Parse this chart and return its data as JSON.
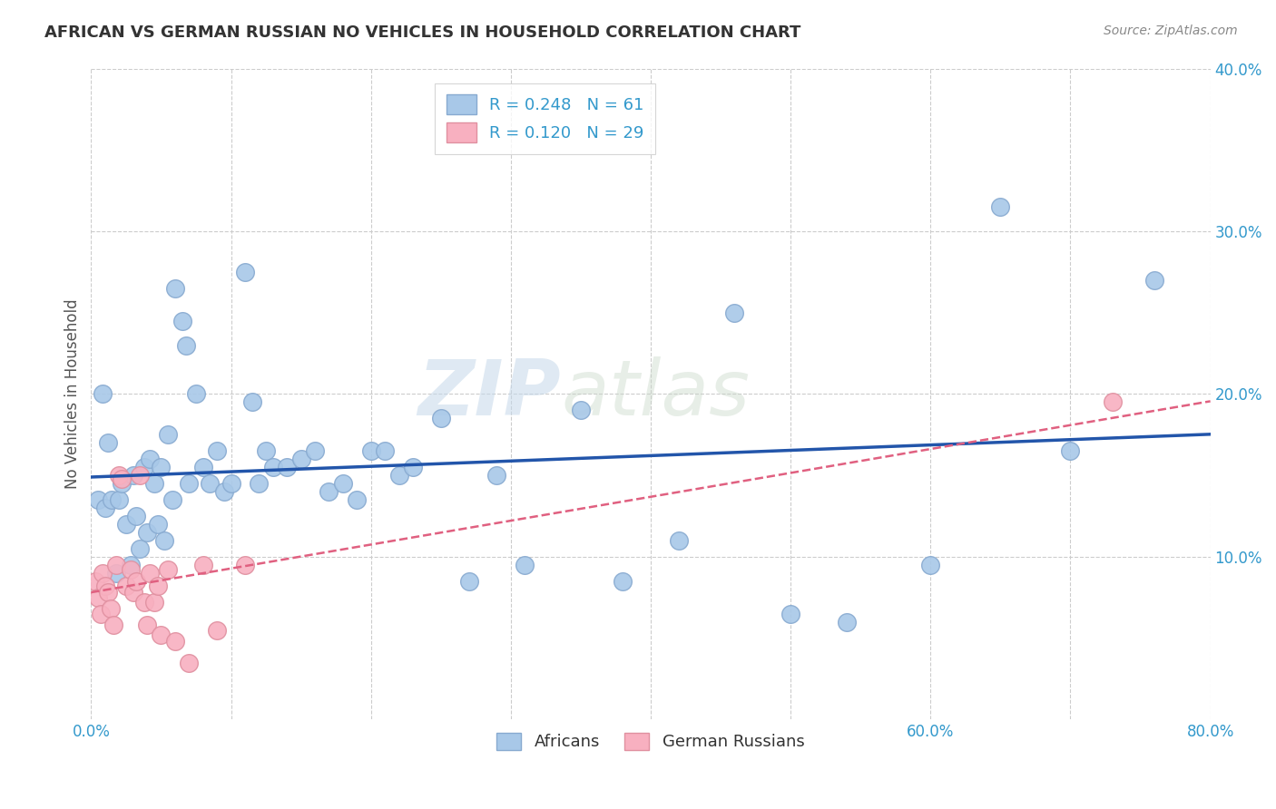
{
  "title": "AFRICAN VS GERMAN RUSSIAN NO VEHICLES IN HOUSEHOLD CORRELATION CHART",
  "source": "Source: ZipAtlas.com",
  "ylabel": "No Vehicles in Household",
  "xlim": [
    0.0,
    0.8
  ],
  "ylim": [
    0.0,
    0.4
  ],
  "xticks": [
    0.0,
    0.1,
    0.2,
    0.3,
    0.4,
    0.5,
    0.6,
    0.7,
    0.8
  ],
  "xticklabels": [
    "0.0%",
    "",
    "",
    "",
    "",
    "",
    "60.0%",
    "",
    "80.0%"
  ],
  "yticks": [
    0.0,
    0.1,
    0.2,
    0.3,
    0.4
  ],
  "yticklabels": [
    "",
    "10.0%",
    "20.0%",
    "30.0%",
    "40.0%"
  ],
  "african_R": 0.248,
  "african_N": 61,
  "german_russian_R": 0.12,
  "german_russian_N": 29,
  "african_color": "#a8c8e8",
  "african_edge_color": "#88aad0",
  "african_line_color": "#2255aa",
  "german_russian_color": "#f8b0c0",
  "german_russian_edge_color": "#e090a0",
  "german_russian_line_color": "#e06080",
  "watermark_zip": "ZIP",
  "watermark_atlas": "atlas",
  "african_x": [
    0.005,
    0.008,
    0.01,
    0.012,
    0.015,
    0.018,
    0.02,
    0.022,
    0.025,
    0.028,
    0.03,
    0.032,
    0.035,
    0.038,
    0.04,
    0.042,
    0.045,
    0.048,
    0.05,
    0.052,
    0.055,
    0.058,
    0.06,
    0.065,
    0.068,
    0.07,
    0.075,
    0.08,
    0.085,
    0.09,
    0.095,
    0.1,
    0.11,
    0.115,
    0.12,
    0.125,
    0.13,
    0.14,
    0.15,
    0.16,
    0.17,
    0.18,
    0.19,
    0.2,
    0.21,
    0.22,
    0.23,
    0.25,
    0.27,
    0.29,
    0.31,
    0.35,
    0.38,
    0.42,
    0.46,
    0.5,
    0.54,
    0.6,
    0.65,
    0.7,
    0.76
  ],
  "african_y": [
    0.135,
    0.2,
    0.13,
    0.17,
    0.135,
    0.09,
    0.135,
    0.145,
    0.12,
    0.095,
    0.15,
    0.125,
    0.105,
    0.155,
    0.115,
    0.16,
    0.145,
    0.12,
    0.155,
    0.11,
    0.175,
    0.135,
    0.265,
    0.245,
    0.23,
    0.145,
    0.2,
    0.155,
    0.145,
    0.165,
    0.14,
    0.145,
    0.275,
    0.195,
    0.145,
    0.165,
    0.155,
    0.155,
    0.16,
    0.165,
    0.14,
    0.145,
    0.135,
    0.165,
    0.165,
    0.15,
    0.155,
    0.185,
    0.085,
    0.15,
    0.095,
    0.19,
    0.085,
    0.11,
    0.25,
    0.065,
    0.06,
    0.095,
    0.315,
    0.165,
    0.27
  ],
  "german_russian_x": [
    0.003,
    0.005,
    0.007,
    0.008,
    0.01,
    0.012,
    0.014,
    0.016,
    0.018,
    0.02,
    0.022,
    0.025,
    0.028,
    0.03,
    0.032,
    0.035,
    0.038,
    0.04,
    0.042,
    0.045,
    0.048,
    0.05,
    0.055,
    0.06,
    0.07,
    0.08,
    0.09,
    0.11,
    0.73
  ],
  "german_russian_y": [
    0.085,
    0.075,
    0.065,
    0.09,
    0.082,
    0.078,
    0.068,
    0.058,
    0.095,
    0.15,
    0.148,
    0.082,
    0.092,
    0.078,
    0.085,
    0.15,
    0.072,
    0.058,
    0.09,
    0.072,
    0.082,
    0.052,
    0.092,
    0.048,
    0.035,
    0.095,
    0.055,
    0.095,
    0.195
  ]
}
